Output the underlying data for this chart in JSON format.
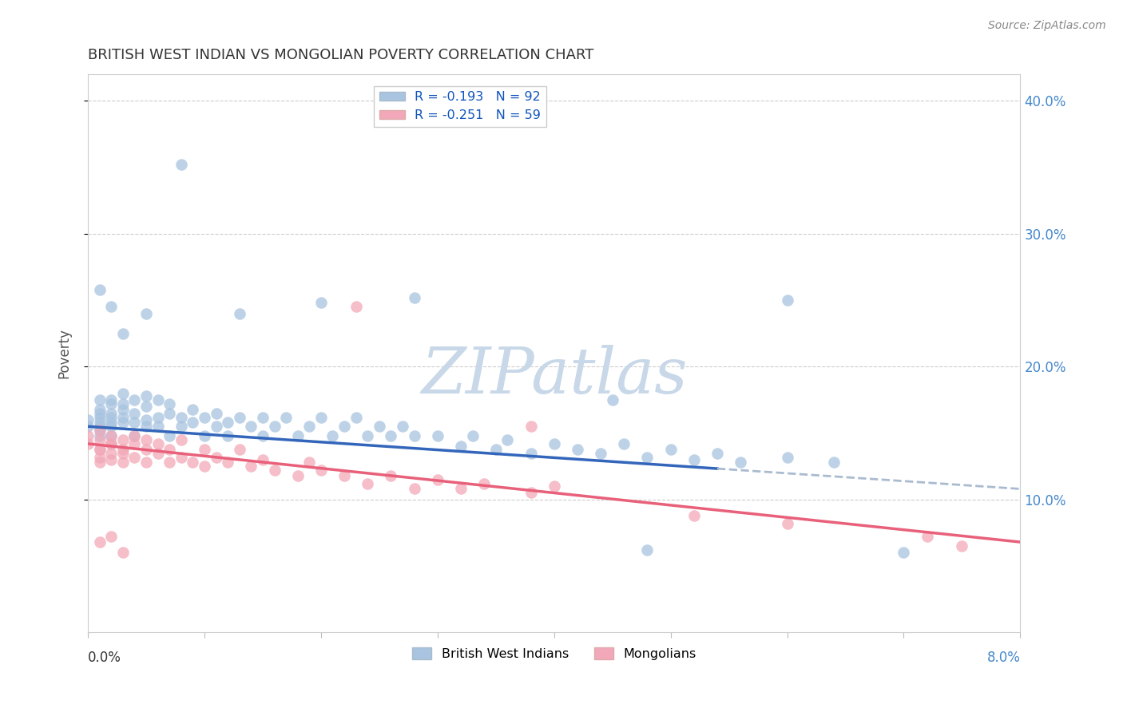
{
  "title": "BRITISH WEST INDIAN VS MONGOLIAN POVERTY CORRELATION CHART",
  "source": "Source: ZipAtlas.com",
  "ylabel": "Poverty",
  "xmin": 0.0,
  "xmax": 0.08,
  "ymin": 0.0,
  "ymax": 0.42,
  "ytick_labels": [
    "10.0%",
    "20.0%",
    "30.0%",
    "40.0%"
  ],
  "ytick_vals": [
    0.1,
    0.2,
    0.3,
    0.4
  ],
  "blue_R": -0.193,
  "blue_N": 92,
  "pink_R": -0.251,
  "pink_N": 59,
  "blue_color": "#a8c4e0",
  "pink_color": "#f2a8b8",
  "blue_line_color": "#3366bb",
  "pink_line_color": "#e8607a",
  "blue_dashed_color": "#aabbd0",
  "watermark": "ZIPatlas",
  "watermark_color": "#c8d8e8",
  "legend_label_blue": "British West Indians",
  "legend_label_pink": "Mongolians",
  "blue_line_x0": 0.0,
  "blue_line_y0": 0.155,
  "blue_line_x1": 0.08,
  "blue_line_y1": 0.108,
  "blue_solid_xend": 0.054,
  "pink_line_x0": 0.0,
  "pink_line_y0": 0.142,
  "pink_line_x1": 0.08,
  "pink_line_y1": 0.068,
  "blue_x": [
    0.0,
    0.0,
    0.001,
    0.001,
    0.001,
    0.001,
    0.001,
    0.001,
    0.001,
    0.001,
    0.002,
    0.002,
    0.002,
    0.002,
    0.002,
    0.002,
    0.002,
    0.003,
    0.003,
    0.003,
    0.003,
    0.003,
    0.004,
    0.004,
    0.004,
    0.004,
    0.005,
    0.005,
    0.005,
    0.005,
    0.006,
    0.006,
    0.006,
    0.007,
    0.007,
    0.007,
    0.008,
    0.008,
    0.009,
    0.009,
    0.01,
    0.01,
    0.011,
    0.011,
    0.012,
    0.012,
    0.013,
    0.014,
    0.015,
    0.015,
    0.016,
    0.017,
    0.018,
    0.019,
    0.02,
    0.021,
    0.022,
    0.023,
    0.024,
    0.025,
    0.026,
    0.027,
    0.028,
    0.03,
    0.032,
    0.033,
    0.035,
    0.036,
    0.038,
    0.04,
    0.042,
    0.044,
    0.046,
    0.048,
    0.05,
    0.052,
    0.054,
    0.056,
    0.06,
    0.064,
    0.001,
    0.002,
    0.003,
    0.005,
    0.008,
    0.013,
    0.02,
    0.028,
    0.045,
    0.06,
    0.048,
    0.07
  ],
  "blue_y": [
    0.155,
    0.16,
    0.148,
    0.162,
    0.155,
    0.168,
    0.175,
    0.158,
    0.152,
    0.165,
    0.172,
    0.158,
    0.165,
    0.148,
    0.175,
    0.162,
    0.155,
    0.168,
    0.18,
    0.158,
    0.162,
    0.172,
    0.165,
    0.158,
    0.175,
    0.148,
    0.17,
    0.16,
    0.155,
    0.178,
    0.162,
    0.175,
    0.155,
    0.165,
    0.172,
    0.148,
    0.162,
    0.155,
    0.168,
    0.158,
    0.162,
    0.148,
    0.155,
    0.165,
    0.158,
    0.148,
    0.162,
    0.155,
    0.162,
    0.148,
    0.155,
    0.162,
    0.148,
    0.155,
    0.162,
    0.148,
    0.155,
    0.162,
    0.148,
    0.155,
    0.148,
    0.155,
    0.148,
    0.148,
    0.14,
    0.148,
    0.138,
    0.145,
    0.135,
    0.142,
    0.138,
    0.135,
    0.142,
    0.132,
    0.138,
    0.13,
    0.135,
    0.128,
    0.132,
    0.128,
    0.258,
    0.245,
    0.225,
    0.24,
    0.352,
    0.24,
    0.248,
    0.252,
    0.175,
    0.25,
    0.062,
    0.06
  ],
  "pink_x": [
    0.0,
    0.0,
    0.001,
    0.001,
    0.001,
    0.001,
    0.001,
    0.001,
    0.002,
    0.002,
    0.002,
    0.002,
    0.002,
    0.003,
    0.003,
    0.003,
    0.003,
    0.004,
    0.004,
    0.004,
    0.005,
    0.005,
    0.005,
    0.006,
    0.006,
    0.007,
    0.007,
    0.008,
    0.008,
    0.009,
    0.01,
    0.01,
    0.011,
    0.012,
    0.013,
    0.014,
    0.015,
    0.016,
    0.018,
    0.019,
    0.02,
    0.022,
    0.024,
    0.026,
    0.028,
    0.03,
    0.032,
    0.034,
    0.038,
    0.04,
    0.023,
    0.038,
    0.052,
    0.06,
    0.072,
    0.001,
    0.002,
    0.003,
    0.075
  ],
  "pink_y": [
    0.148,
    0.142,
    0.138,
    0.145,
    0.132,
    0.152,
    0.128,
    0.138,
    0.142,
    0.135,
    0.148,
    0.13,
    0.142,
    0.138,
    0.145,
    0.128,
    0.135,
    0.142,
    0.132,
    0.148,
    0.138,
    0.145,
    0.128,
    0.135,
    0.142,
    0.128,
    0.138,
    0.132,
    0.145,
    0.128,
    0.138,
    0.125,
    0.132,
    0.128,
    0.138,
    0.125,
    0.13,
    0.122,
    0.118,
    0.128,
    0.122,
    0.118,
    0.112,
    0.118,
    0.108,
    0.115,
    0.108,
    0.112,
    0.105,
    0.11,
    0.245,
    0.155,
    0.088,
    0.082,
    0.072,
    0.068,
    0.072,
    0.06,
    0.065
  ]
}
